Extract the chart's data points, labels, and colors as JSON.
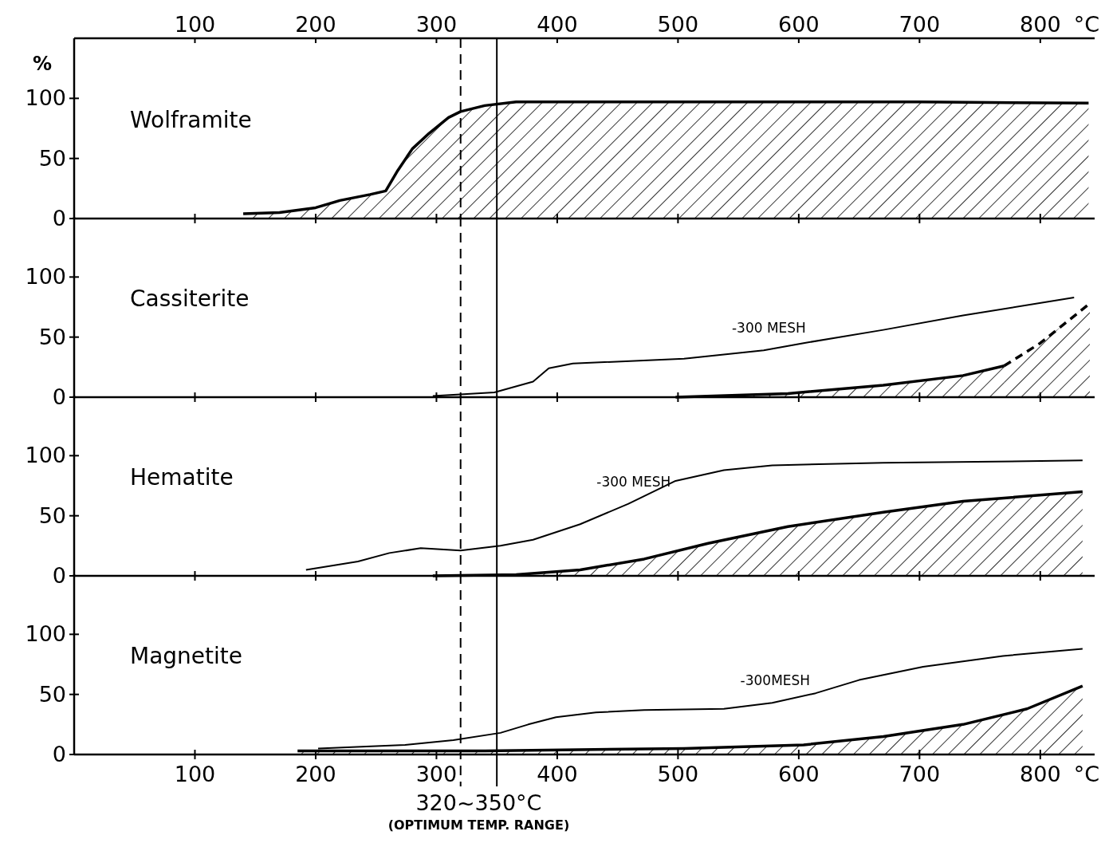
{
  "chart_data": [
    {
      "type": "area",
      "title": "Wolframite",
      "ylabel": "%",
      "x2label": "°C",
      "xlim": [
        0,
        845
      ],
      "xticks": [
        100,
        200,
        300,
        400,
        500,
        600,
        700,
        800
      ],
      "x2lim": [
        0,
        845
      ],
      "x2ticks": [
        100,
        200,
        300,
        400,
        500,
        600,
        700,
        800
      ],
      "ylim": [
        0,
        150
      ],
      "yticks": [
        0,
        50,
        100
      ],
      "tick_labels": "y",
      "ref_lines": [
        {
          "axis": "x",
          "value": 320,
          "line_style": "dashed"
        },
        {
          "axis": "x",
          "value": 350,
          "line_style": "solid"
        }
      ],
      "series": [
        {
          "type": "area",
          "color": "#000000",
          "x": [
            140,
            170,
            200,
            220,
            245,
            258,
            268,
            280,
            294,
            310,
            320,
            340,
            366,
            500,
            700,
            840
          ],
          "values": [
            4,
            5,
            9,
            15,
            20,
            23,
            40,
            58,
            71,
            84,
            89,
            94,
            97,
            97,
            97,
            96
          ]
        }
      ]
    },
    {
      "type": "area",
      "title": "Cassiterite",
      "xlim": [
        0,
        845
      ],
      "xticks": [
        100,
        200,
        300,
        400,
        500,
        600,
        700,
        800
      ],
      "ylim": [
        0,
        150
      ],
      "yticks": [
        0,
        50,
        100
      ],
      "tick_labels": "y",
      "ref_lines": [
        {
          "axis": "x",
          "value": 320,
          "line_style": "dashed"
        },
        {
          "axis": "x",
          "value": 350,
          "line_style": "solid"
        }
      ],
      "series": [
        {
          "type": "line",
          "name": "-300 MESH",
          "color": "#000000",
          "x": [
            297,
            348,
            380,
            393,
            413,
            505,
            571,
            604,
            670,
            736,
            828
          ],
          "values": [
            1,
            4,
            13,
            24,
            28,
            32,
            39,
            45,
            56,
            68,
            83
          ]
        },
        {
          "type": "area",
          "color": "#000000",
          "x": [
            498,
            591,
            670,
            736,
            770
          ],
          "values": [
            0,
            3,
            10,
            18,
            26
          ]
        },
        {
          "type": "area",
          "color": "#000000",
          "line_style": "dashed",
          "x": [
            770,
            800,
            841
          ],
          "values": [
            26,
            45,
            78
          ]
        }
      ]
    },
    {
      "type": "area",
      "title": "Hematite",
      "xlim": [
        0,
        845
      ],
      "xticks": [
        100,
        200,
        300,
        400,
        500,
        600,
        700,
        800
      ],
      "ylim": [
        0,
        150
      ],
      "yticks": [
        0,
        50,
        100
      ],
      "tick_labels": "y",
      "ref_lines": [
        {
          "axis": "x",
          "value": 320,
          "line_style": "dashed"
        },
        {
          "axis": "x",
          "value": 350,
          "line_style": "solid"
        }
      ],
      "series": [
        {
          "type": "line",
          "name": "-300 MESH",
          "color": "#000000",
          "x": [
            192,
            235,
            261,
            287,
            320,
            353,
            380,
            419,
            459,
            498,
            538,
            578,
            670,
            835
          ],
          "values": [
            5,
            12,
            19,
            23,
            21,
            25,
            30,
            43,
            60,
            79,
            88,
            92,
            94,
            96
          ]
        },
        {
          "type": "area",
          "color": "#000000",
          "x": [
            297,
            366,
            419,
            472,
            525,
            591,
            670,
            736,
            835
          ],
          "values": [
            0,
            1,
            5,
            14,
            27,
            41,
            53,
            62,
            70
          ]
        }
      ]
    },
    {
      "type": "area",
      "title": "Magnetite",
      "xlabel": "°C",
      "xlim": [
        0,
        845
      ],
      "xticks": [
        100,
        200,
        300,
        400,
        500,
        600,
        700,
        800
      ],
      "ylim": [
        0,
        150
      ],
      "yticks": [
        0,
        50,
        100
      ],
      "ref_lines": [
        {
          "axis": "x",
          "value": 320,
          "line_style": "dashed"
        },
        {
          "axis": "x",
          "value": 350,
          "line_style": "solid"
        }
      ],
      "annotations": [
        "320~350°C",
        "(OPTIMUM TEMP. RANGE)"
      ],
      "series": [
        {
          "type": "line",
          "name": "-300MESH",
          "color": "#000000",
          "x": [
            202,
            274,
            314,
            353,
            376,
            399,
            432,
            472,
            538,
            578,
            614,
            650,
            703,
            769,
            835
          ],
          "values": [
            5,
            8,
            12,
            18,
            25,
            31,
            35,
            37,
            38,
            43,
            51,
            62,
            73,
            82,
            88
          ]
        },
        {
          "type": "area",
          "color": "#000000",
          "x": [
            185,
            340,
            505,
            604,
            670,
            736,
            789,
            835
          ],
          "values": [
            3,
            3,
            5,
            8,
            15,
            25,
            38,
            57
          ]
        }
      ]
    }
  ]
}
